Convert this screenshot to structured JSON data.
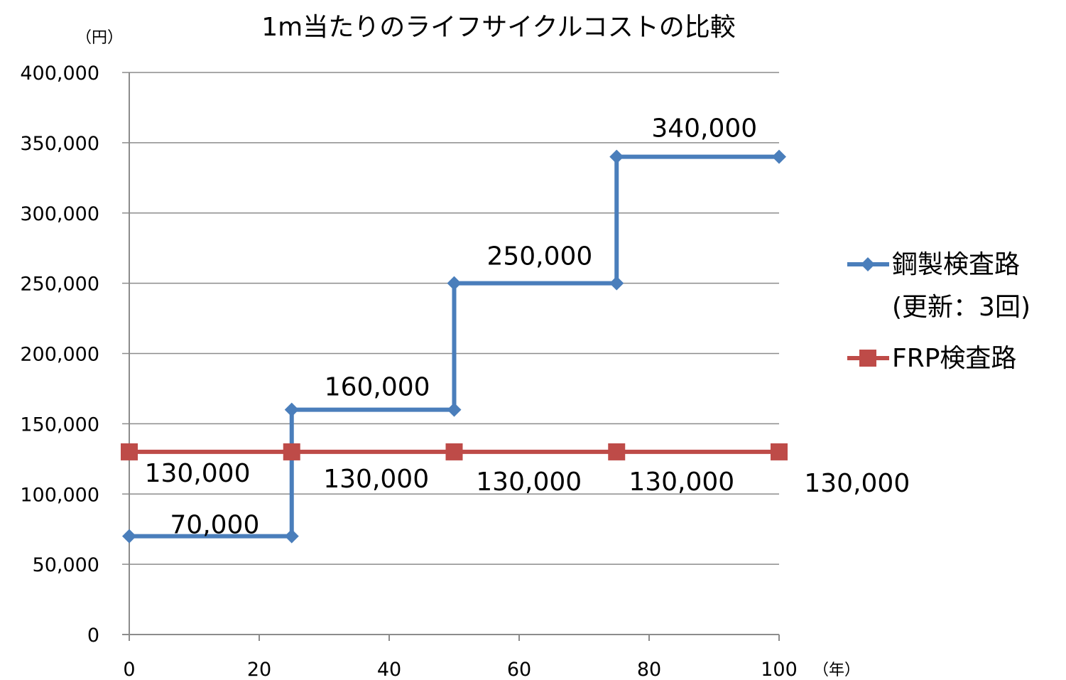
{
  "chart_data": {
    "type": "line",
    "title": "1m当たりのライフサイクルコストの比較",
    "ylabel": "（円）",
    "xlabel": "（年）",
    "ylim": [
      0,
      400000
    ],
    "xlim": [
      0,
      100
    ],
    "yticks": [
      "0",
      "50,000",
      "100,000",
      "150,000",
      "200,000",
      "250,000",
      "300,000",
      "350,000",
      "400,000"
    ],
    "xticks": [
      "0",
      "20",
      "40",
      "60",
      "80",
      "100"
    ],
    "grid": "horizontal",
    "legend_position": "right",
    "series": [
      {
        "name_lines": [
          "鋼製検査路",
          "(更新：3回)"
        ],
        "color": "#4A7EBB",
        "marker": "diamond",
        "x": [
          0,
          25,
          25,
          50,
          50,
          75,
          75,
          100
        ],
        "y": [
          70000,
          70000,
          160000,
          160000,
          250000,
          250000,
          340000,
          340000
        ],
        "labels": [
          "70,000",
          "160,000",
          "250,000",
          "340,000"
        ]
      },
      {
        "name_lines": [
          "FRP検査路"
        ],
        "color": "#BE4B48",
        "marker": "square",
        "x": [
          0,
          25,
          50,
          75,
          100
        ],
        "y": [
          130000,
          130000,
          130000,
          130000,
          130000
        ],
        "labels": [
          "130,000",
          "130,000",
          "130,000",
          "130,000",
          "130,000"
        ]
      }
    ]
  }
}
